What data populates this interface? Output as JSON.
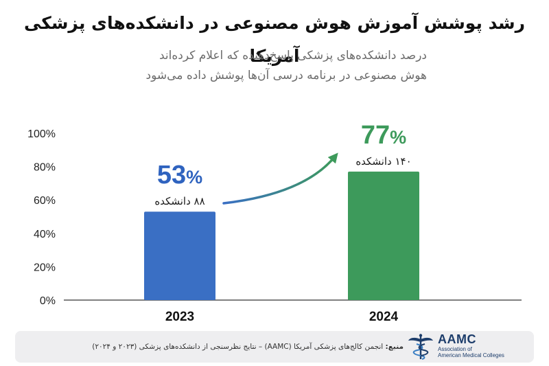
{
  "title": "رشد پوشش آموزش هوش مصنوعی در دانشکده‌های پزشکی آمریکا",
  "subtitle_lines": [
    "درصد دانشکده‌های پزشکی پاسخ‌دهنده که اعلام کرده‌اند",
    "هوش مصنوعی در برنامه درسی آن‌ها پوشش داده می‌شود"
  ],
  "colors": {
    "bar_2023": "#3a6fc4",
    "bar_2024": "#3d9a5b",
    "text_2023": "#2f63bf",
    "text_2024": "#3d9a5b",
    "axis": "#333333"
  },
  "chart_data": {
    "type": "bar",
    "categories": [
      "2023",
      "2024"
    ],
    "values": [
      53,
      77
    ],
    "percent_labels": [
      "53",
      "77"
    ],
    "percent_sign": "%",
    "count_labels": [
      "۸۸ دانشکده",
      "۱۴۰ دانشکده"
    ],
    "yticks": [
      "0%",
      "20%",
      "40%",
      "60%",
      "80%",
      "100%"
    ],
    "ylim": [
      0,
      100
    ],
    "title": "رشد پوشش آموزش هوش مصنوعی در دانشکده‌های پزشکی آمریکا",
    "xlabel": "",
    "ylabel": "",
    "grid": false
  },
  "footer": {
    "source_label": "منبع:",
    "source_text": "انجمن کالج‌های پزشکی آمریکا (AAMC) – نتایج نظرسنجی از دانشکده‌های پزشکی (۲۰۲۳ و ۲۰۲۴)",
    "logo_abbr": "AAMC",
    "logo_line1": "Association of",
    "logo_line2": "American Medical Colleges",
    "logo_icon": "caduceus-icon"
  }
}
